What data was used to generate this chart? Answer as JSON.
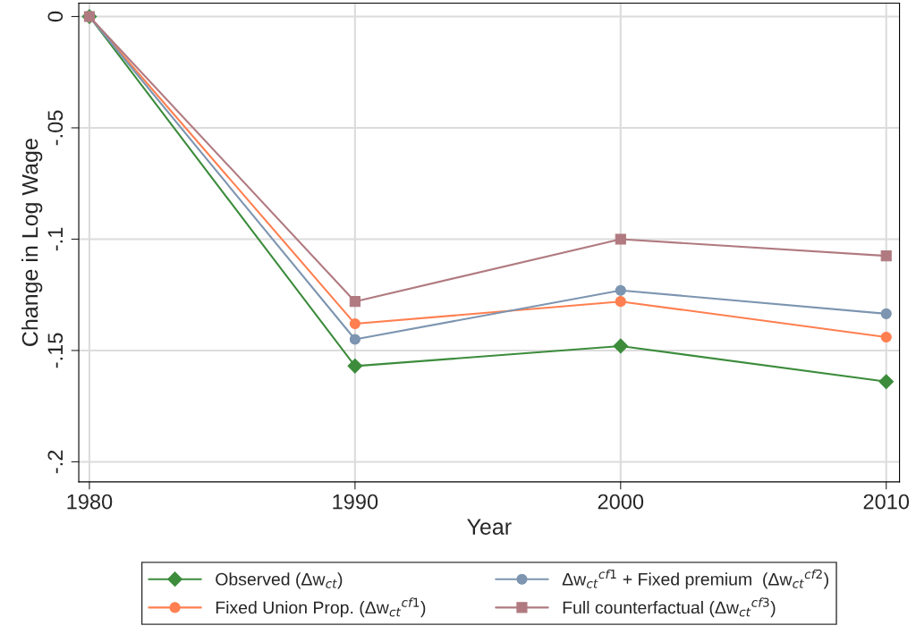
{
  "chart_data": {
    "type": "line",
    "xlabel": "Year",
    "ylabel": "Change in Log Wage",
    "x": [
      1980,
      1990,
      2000,
      2010
    ],
    "xlim": [
      1979.6,
      2010.5
    ],
    "xticks": [
      1980,
      1990,
      2000,
      2010
    ],
    "ylim": [
      -0.209,
      0.006
    ],
    "yticks": [
      {
        "value": 0,
        "label": "0"
      },
      {
        "value": -0.05,
        "label": "-.05"
      },
      {
        "value": -0.1,
        "label": "-.1"
      },
      {
        "value": -0.15,
        "label": "-.15"
      },
      {
        "value": -0.2,
        "label": "-.2"
      }
    ],
    "grid": true,
    "legend": "bottom",
    "series": [
      {
        "name": "Observed (Δw$_{ct}$)",
        "color": "#3c8c3c",
        "marker": "diamond",
        "values": [
          0,
          -0.157,
          -0.148,
          -0.164
        ]
      },
      {
        "name": "Fixed Union Prop. (Δw$_{ct}$$^{cf1}$)",
        "color": "#ff7f50",
        "marker": "circle",
        "values": [
          0,
          -0.138,
          -0.128,
          -0.144
        ]
      },
      {
        "name": "Δw$_{ct}$$^{cf1}$ + Fixed premium  (Δw$_{ct}$$^{cf2}$)",
        "color": "#7d95b0",
        "marker": "circle",
        "values": [
          0,
          -0.145,
          -0.123,
          -0.1335
        ]
      },
      {
        "name": "Full counterfactual (Δw$_{ct}$$^{cf3}$)",
        "color": "#b07a80",
        "marker": "square",
        "values": [
          0,
          -0.128,
          -0.1,
          -0.1075
        ]
      }
    ]
  }
}
